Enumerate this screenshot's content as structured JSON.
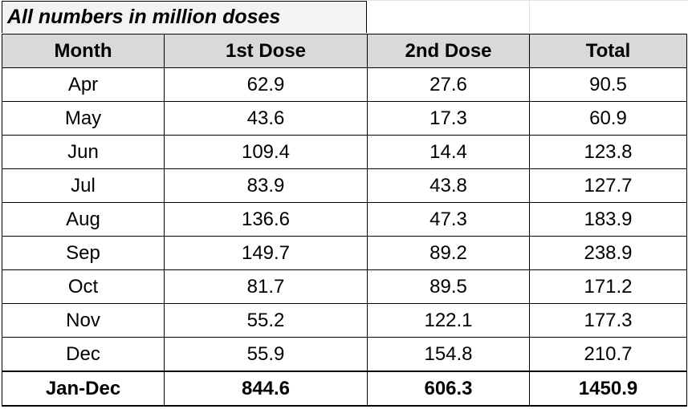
{
  "note": "All numbers in million doses",
  "headers": {
    "month": "Month",
    "first_dose": "1st Dose",
    "second_dose": "2nd Dose",
    "total": "Total"
  },
  "rows": [
    {
      "month": "Apr",
      "first_dose": "62.9",
      "second_dose": "27.6",
      "total": "90.5"
    },
    {
      "month": "May",
      "first_dose": "43.6",
      "second_dose": "17.3",
      "total": "60.9"
    },
    {
      "month": "Jun",
      "first_dose": "109.4",
      "second_dose": "14.4",
      "total": "123.8"
    },
    {
      "month": "Jul",
      "first_dose": "83.9",
      "second_dose": "43.8",
      "total": "127.7"
    },
    {
      "month": "Aug",
      "first_dose": "136.6",
      "second_dose": "47.3",
      "total": "183.9"
    },
    {
      "month": "Sep",
      "first_dose": "149.7",
      "second_dose": "89.2",
      "total": "238.9"
    },
    {
      "month": "Oct",
      "first_dose": "81.7",
      "second_dose": "89.5",
      "total": "171.2"
    },
    {
      "month": "Nov",
      "first_dose": "55.2",
      "second_dose": "122.1",
      "total": "177.3"
    },
    {
      "month": "Dec",
      "first_dose": "55.9",
      "second_dose": "154.8",
      "total": "210.7"
    }
  ],
  "total_row": {
    "month": "Jan-Dec",
    "first_dose": "844.6",
    "second_dose": "606.3",
    "total": "1450.9"
  },
  "colors": {
    "header_background": "#d9d9d9",
    "note_background": "#f3f3f3",
    "border": "#000000"
  }
}
